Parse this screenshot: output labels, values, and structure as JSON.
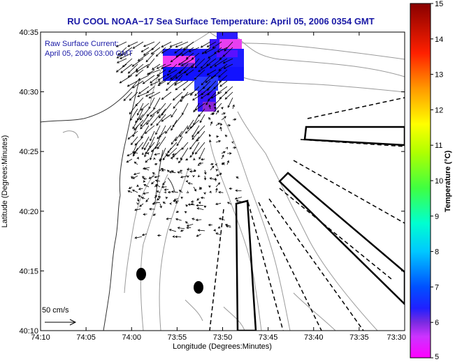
{
  "title": "RU COOL  NOAA−17  Sea Surface Temperature:  April 05, 2006 0354 GMT",
  "legend": {
    "line1": "Raw Surface Current:",
    "line2": "April 05, 2006 03:00 GMT"
  },
  "scale_label": "50 cm/s",
  "x_axis": {
    "label": "Longitude (Degrees:Minutes)",
    "ticks": [
      "74:10",
      "74:05",
      "74:00",
      "73:55",
      "73:50",
      "73:45",
      "73:40",
      "73:35",
      "73:30"
    ]
  },
  "y_axis": {
    "label": "Latitude (Degrees:Minutes)",
    "ticks": [
      "40:35",
      "40:30",
      "40:25",
      "40:20",
      "40:15",
      "40:10"
    ]
  },
  "colorbar": {
    "label": "Temperature (°C)",
    "ticks": [
      "15",
      "14",
      "13",
      "12",
      "11",
      "10",
      "9",
      "8",
      "7",
      "6",
      "5"
    ],
    "colors": [
      "#ff00ff",
      "#8000ff",
      "#0000ff",
      "#0080ff",
      "#00ffff",
      "#00ff80",
      "#80ff00",
      "#ffff00",
      "#ff8000",
      "#ff0000",
      "#800000"
    ]
  }
}
